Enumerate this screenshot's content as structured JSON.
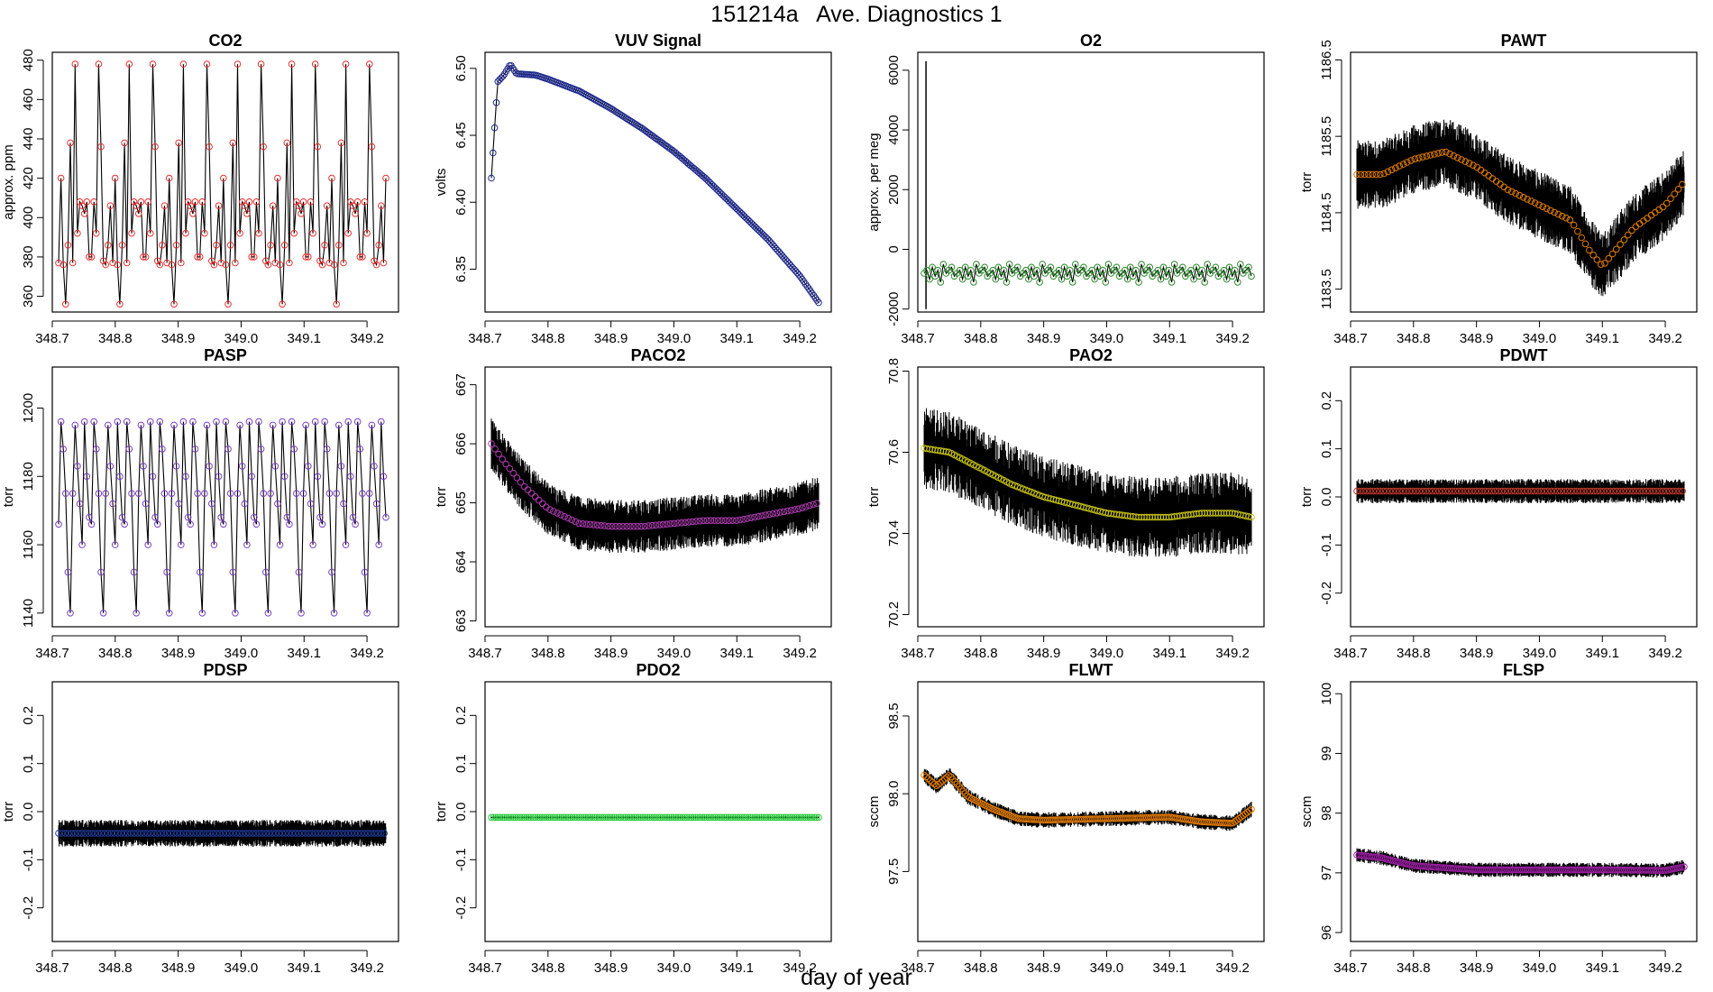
{
  "title": "151214a   Ave. Diagnostics 1",
  "xlabel": "day of year",
  "chart_data": [
    {
      "type": "line",
      "title": "CO2",
      "ylabel": "approx. ppm",
      "xlim": [
        348.7,
        349.25
      ],
      "ylim": [
        352,
        484
      ],
      "xticks": [
        348.7,
        348.8,
        348.9,
        349.0,
        349.1,
        349.2
      ],
      "xtick_labels": [
        "348.7",
        "348.8",
        "348.9",
        "349.0",
        "349.1",
        "349.2"
      ],
      "yticks": [
        360,
        380,
        400,
        420,
        440,
        460,
        480
      ],
      "ytick_labels": [
        "360",
        "380",
        "400",
        "420",
        "440",
        "460",
        "480"
      ],
      "point_color": "#e8312f",
      "pattern": "cycle",
      "pattern_values": [
        377,
        420,
        376,
        356,
        386,
        438,
        377,
        478,
        392,
        408,
        406,
        402,
        408,
        380,
        380,
        408,
        392,
        478,
        436,
        378,
        376,
        386,
        406
      ],
      "x_range": [
        348.71,
        349.23
      ],
      "n_points": 140
    },
    {
      "type": "line",
      "title": "VUV Signal",
      "ylabel": "volts",
      "xlim": [
        348.7,
        349.25
      ],
      "ylim": [
        6.318,
        6.512
      ],
      "xticks": [
        348.7,
        348.8,
        348.9,
        349.0,
        349.1,
        349.2
      ],
      "xtick_labels": [
        "348.7",
        "348.8",
        "348.9",
        "349.0",
        "349.1",
        "349.2"
      ],
      "yticks": [
        6.35,
        6.4,
        6.45,
        6.5
      ],
      "ytick_labels": [
        "6.35",
        "6.40",
        "6.45",
        "6.50"
      ],
      "point_color": "#1f2a8c",
      "pattern": "series",
      "x": [
        348.71,
        348.72,
        348.73,
        348.74,
        348.75,
        348.78,
        348.8,
        348.85,
        348.9,
        348.95,
        349.0,
        349.05,
        349.1,
        349.15,
        349.2,
        349.23
      ],
      "y": [
        6.418,
        6.49,
        6.495,
        6.503,
        6.496,
        6.495,
        6.492,
        6.483,
        6.47,
        6.455,
        6.438,
        6.418,
        6.395,
        6.372,
        6.345,
        6.325
      ],
      "n_points": 200
    },
    {
      "type": "line",
      "title": "O2",
      "ylabel": "approx. per meg",
      "xlim": [
        348.7,
        349.25
      ],
      "ylim": [
        -2100,
        6600
      ],
      "xticks": [
        348.7,
        348.8,
        348.9,
        349.0,
        349.1,
        349.2
      ],
      "xtick_labels": [
        "348.7",
        "348.8",
        "348.9",
        "349.0",
        "349.1",
        "349.2"
      ],
      "yticks": [
        -2000,
        0,
        2000,
        4000,
        6000
      ],
      "ytick_labels": [
        "-2000",
        "0",
        "2000",
        "4000",
        "6000"
      ],
      "point_color": "#2c8a2c",
      "pattern": "cycle",
      "pattern_values": [
        -800,
        -700,
        -1000,
        -600,
        -900,
        -700,
        -1100,
        -500,
        -800,
        -700,
        -600,
        -900
      ],
      "x_range": [
        348.71,
        349.23
      ],
      "n_points": 120,
      "spike": {
        "x": 348.713,
        "y_top": 6300,
        "y_bottom": -2000
      }
    },
    {
      "type": "line",
      "title": "PAWT",
      "ylabel": "torr",
      "xlim": [
        348.7,
        349.25
      ],
      "ylim": [
        1183.2,
        1186.6
      ],
      "xticks": [
        348.7,
        348.8,
        348.9,
        349.0,
        349.1,
        349.2
      ],
      "xtick_labels": [
        "348.7",
        "348.8",
        "348.9",
        "349.0",
        "349.1",
        "349.2"
      ],
      "yticks": [
        1183.5,
        1184.5,
        1185.5,
        1186.5
      ],
      "ytick_labels": [
        "1183.5",
        "1184.5",
        "1185.5",
        "1186.5"
      ],
      "point_color": "#e07b00",
      "pattern": "series",
      "x": [
        348.71,
        348.75,
        348.8,
        348.85,
        348.9,
        348.95,
        349.0,
        349.05,
        349.08,
        349.1,
        349.12,
        349.15,
        349.2,
        349.23
      ],
      "y": [
        1185.0,
        1185.0,
        1185.2,
        1185.3,
        1185.1,
        1184.8,
        1184.6,
        1184.4,
        1184.0,
        1183.8,
        1184.0,
        1184.3,
        1184.6,
        1184.9
      ],
      "noise": 0.45,
      "n_points": 170
    },
    {
      "type": "line",
      "title": "PASP",
      "ylabel": "torr",
      "xlim": [
        348.7,
        349.25
      ],
      "ylim": [
        1136,
        1212
      ],
      "xticks": [
        348.7,
        348.8,
        348.9,
        349.0,
        349.1,
        349.2
      ],
      "xtick_labels": [
        "348.7",
        "348.8",
        "348.9",
        "349.0",
        "349.1",
        "349.2"
      ],
      "yticks": [
        1140,
        1160,
        1180,
        1200
      ],
      "ytick_labels": [
        "1140",
        "1160",
        "1180",
        "1200"
      ],
      "point_color": "#7a3fc4",
      "pattern": "cycle",
      "pattern_values": [
        1166,
        1196,
        1188,
        1175,
        1152,
        1140,
        1175,
        1195,
        1183,
        1172,
        1160,
        1196,
        1180,
        1168
      ],
      "x_range": [
        348.71,
        349.23
      ],
      "n_points": 140
    },
    {
      "type": "line",
      "title": "PACO2",
      "ylabel": "torr",
      "xlim": [
        348.7,
        349.25
      ],
      "ylim": [
        662.9,
        667.3
      ],
      "xticks": [
        348.7,
        348.8,
        348.9,
        349.0,
        349.1,
        349.2
      ],
      "xtick_labels": [
        "348.7",
        "348.8",
        "348.9",
        "349.0",
        "349.1",
        "349.2"
      ],
      "yticks": [
        663,
        664,
        665,
        666,
        667
      ],
      "ytick_labels": [
        "663",
        "664",
        "665",
        "666",
        "667"
      ],
      "point_color": "#b23bb5",
      "pattern": "series",
      "x": [
        348.71,
        348.73,
        348.76,
        348.8,
        348.85,
        348.9,
        348.95,
        349.0,
        349.05,
        349.1,
        349.15,
        349.2,
        349.23
      ],
      "y": [
        666.0,
        665.7,
        665.3,
        664.9,
        664.65,
        664.6,
        664.6,
        664.65,
        664.7,
        664.7,
        664.8,
        664.9,
        665.0
      ],
      "noise": 0.45,
      "n_points": 180
    },
    {
      "type": "line",
      "title": "PAO2",
      "ylabel": "torr",
      "xlim": [
        348.7,
        349.25
      ],
      "ylim": [
        70.17,
        70.81
      ],
      "xticks": [
        348.7,
        348.8,
        348.9,
        349.0,
        349.1,
        349.2
      ],
      "xtick_labels": [
        "348.7",
        "348.8",
        "348.9",
        "349.0",
        "349.1",
        "349.2"
      ],
      "yticks": [
        70.2,
        70.4,
        70.6,
        70.8
      ],
      "ytick_labels": [
        "70.2",
        "70.4",
        "70.6",
        "70.8"
      ],
      "point_color": "#c7c216",
      "pattern": "series",
      "x": [
        348.71,
        348.75,
        348.8,
        348.85,
        348.9,
        348.95,
        349.0,
        349.05,
        349.1,
        349.15,
        349.2,
        349.23
      ],
      "y": [
        70.61,
        70.6,
        70.56,
        70.52,
        70.49,
        70.47,
        70.45,
        70.44,
        70.44,
        70.45,
        70.45,
        70.44
      ],
      "noise": 0.1,
      "n_points": 120
    },
    {
      "type": "line",
      "title": "PDWT",
      "ylabel": "torr",
      "xlim": [
        348.7,
        349.25
      ],
      "ylim": [
        -0.27,
        0.27
      ],
      "xticks": [
        348.7,
        348.8,
        348.9,
        349.0,
        349.1,
        349.2
      ],
      "xtick_labels": [
        "348.7",
        "348.8",
        "348.9",
        "349.0",
        "349.1",
        "349.2"
      ],
      "yticks": [
        -0.2,
        -0.1,
        0.0,
        0.1,
        0.2
      ],
      "ytick_labels": [
        "-0.2",
        "-0.1",
        "0.0",
        "0.1",
        "0.2"
      ],
      "point_color": "#c0392b",
      "pattern": "series",
      "x": [
        348.71,
        349.23
      ],
      "y": [
        0.012,
        0.012
      ],
      "noise": 0.025,
      "n_points": 200
    },
    {
      "type": "line",
      "title": "PDSP",
      "ylabel": "torr",
      "xlim": [
        348.7,
        349.25
      ],
      "ylim": [
        -0.27,
        0.27
      ],
      "xticks": [
        348.7,
        348.8,
        348.9,
        349.0,
        349.1,
        349.2
      ],
      "xtick_labels": [
        "348.7",
        "348.8",
        "348.9",
        "349.0",
        "349.1",
        "349.2"
      ],
      "yticks": [
        -0.2,
        -0.1,
        0.0,
        0.1,
        0.2
      ],
      "ytick_labels": [
        "-0.2",
        "-0.1",
        "0.0",
        "0.1",
        "0.2"
      ],
      "point_color": "#1f3b9c",
      "pattern": "series",
      "x": [
        348.71,
        349.23
      ],
      "y": [
        -0.045,
        -0.045
      ],
      "noise": 0.028,
      "n_points": 200
    },
    {
      "type": "line",
      "title": "PDO2",
      "ylabel": "torr",
      "xlim": [
        348.7,
        349.25
      ],
      "ylim": [
        -0.27,
        0.27
      ],
      "xticks": [
        348.7,
        348.8,
        348.9,
        349.0,
        349.1,
        349.2
      ],
      "xtick_labels": [
        "348.7",
        "348.8",
        "348.9",
        "349.0",
        "349.1",
        "349.2"
      ],
      "yticks": [
        -0.2,
        -0.1,
        0.0,
        0.1,
        0.2
      ],
      "ytick_labels": [
        "-0.2",
        "-0.1",
        "0.0",
        "0.1",
        "0.2"
      ],
      "point_color": "#2ecc40",
      "pattern": "series",
      "x": [
        348.71,
        349.23
      ],
      "y": [
        -0.012,
        -0.012
      ],
      "noise": 0.002,
      "n_points": 150
    },
    {
      "type": "line",
      "title": "FLWT",
      "ylabel": "sccm",
      "xlim": [
        348.7,
        349.25
      ],
      "ylim": [
        97.05,
        98.72
      ],
      "xticks": [
        348.7,
        348.8,
        348.9,
        349.0,
        349.1,
        349.2
      ],
      "xtick_labels": [
        "348.7",
        "348.8",
        "348.9",
        "349.0",
        "349.1",
        "349.2"
      ],
      "yticks": [
        97.5,
        98.0,
        98.5
      ],
      "ytick_labels": [
        "97.5",
        "98.0",
        "98.5"
      ],
      "point_color": "#e07b00",
      "pattern": "series",
      "x": [
        348.71,
        348.73,
        348.75,
        348.78,
        348.82,
        348.86,
        348.9,
        349.0,
        349.1,
        349.15,
        349.2,
        349.23
      ],
      "y": [
        98.12,
        98.05,
        98.12,
        97.98,
        97.9,
        97.84,
        97.83,
        97.84,
        97.85,
        97.82,
        97.81,
        97.9
      ],
      "noise": 0.05,
      "n_points": 160
    },
    {
      "type": "line",
      "title": "FLSP",
      "ylabel": "sccm",
      "xlim": [
        348.7,
        349.25
      ],
      "ylim": [
        95.85,
        100.2
      ],
      "xticks": [
        348.7,
        348.8,
        348.9,
        349.0,
        349.1,
        349.2
      ],
      "xtick_labels": [
        "348.7",
        "348.8",
        "348.9",
        "349.0",
        "349.1",
        "349.2"
      ],
      "yticks": [
        96,
        97,
        98,
        99,
        100
      ],
      "ytick_labels": [
        "96",
        "97",
        "98",
        "99",
        "100"
      ],
      "point_color": "#9c1fa3",
      "pattern": "series",
      "x": [
        348.71,
        348.75,
        348.8,
        348.9,
        349.0,
        349.1,
        349.2,
        349.23
      ],
      "y": [
        97.3,
        97.25,
        97.12,
        97.05,
        97.05,
        97.05,
        97.04,
        97.1
      ],
      "noise": 0.12,
      "n_points": 160
    }
  ]
}
